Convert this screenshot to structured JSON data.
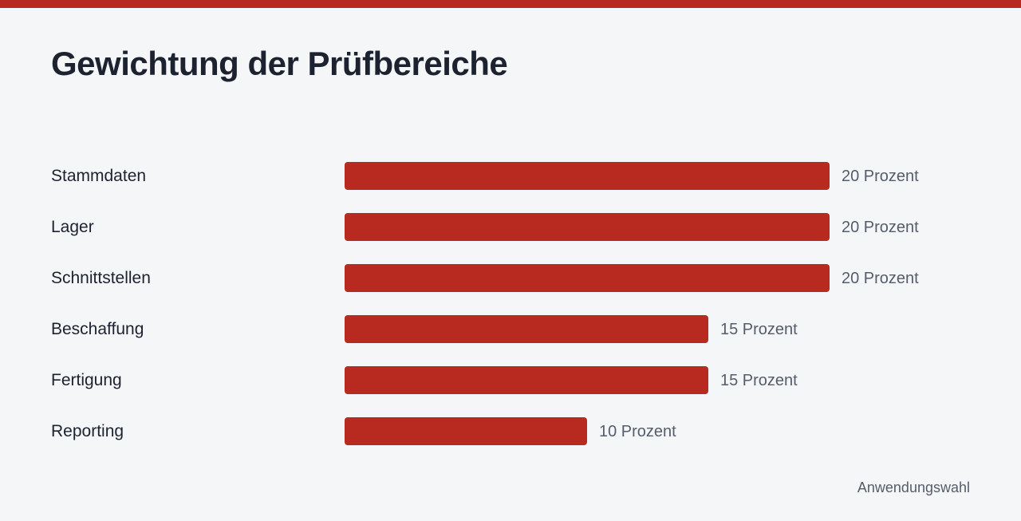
{
  "title": "Gewichtung der Prüfbereiche",
  "source_note": "Anwendungswahl",
  "colors": {
    "accent": "#b82a20",
    "background": "#f5f6f8",
    "text": "#1d2230",
    "muted_text": "#555c6b"
  },
  "chart_data": {
    "type": "bar",
    "orientation": "horizontal",
    "title": "Gewichtung der Prüfbereiche",
    "categories": [
      "Stammdaten",
      "Lager",
      "Schnittstellen",
      "Beschaffung",
      "Fertigung",
      "Reporting"
    ],
    "values": [
      20,
      20,
      20,
      15,
      15,
      10
    ],
    "value_labels": [
      "20 Prozent",
      "20 Prozent",
      "20 Prozent",
      "15 Prozent",
      "15 Prozent",
      "10 Prozent"
    ],
    "unit": "Prozent",
    "xlim": [
      0,
      20
    ],
    "grid": false,
    "legend": "none"
  }
}
